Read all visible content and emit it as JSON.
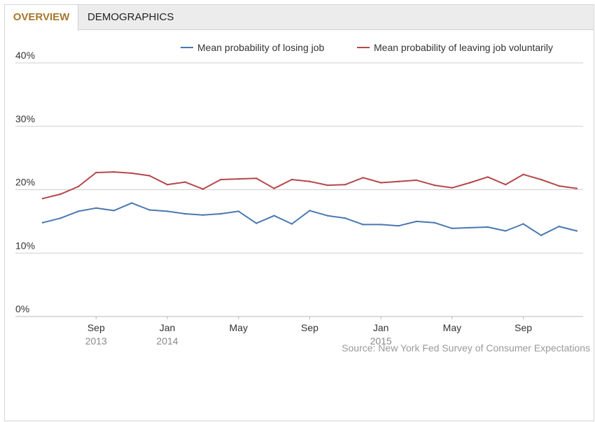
{
  "tabs": [
    {
      "label": "OVERVIEW",
      "active": true
    },
    {
      "label": "DEMOGRAPHICS",
      "active": false
    }
  ],
  "source_text": "Source: New York Fed Survey of Consumer Expectations",
  "colors": {
    "losing": "#4a78b0",
    "leaving": "#b5474a",
    "active_tab": "#a5772c"
  },
  "chart_data": {
    "type": "line",
    "title": "",
    "xlabel": "",
    "ylabel": "",
    "ylim": [
      0,
      40
    ],
    "yticks": [
      "0%",
      "10%",
      "20%",
      "30%",
      "40%"
    ],
    "ytick_values": [
      0,
      10,
      20,
      30,
      40
    ],
    "grid": true,
    "legend_position": "top-right",
    "x": [
      "2013-06",
      "2013-07",
      "2013-08",
      "2013-09",
      "2013-10",
      "2013-11",
      "2013-12",
      "2014-01",
      "2014-02",
      "2014-03",
      "2014-04",
      "2014-05",
      "2014-06",
      "2014-07",
      "2014-08",
      "2014-09",
      "2014-10",
      "2014-11",
      "2014-12",
      "2015-01",
      "2015-02",
      "2015-03",
      "2015-04",
      "2015-05",
      "2015-06",
      "2015-07",
      "2015-08",
      "2015-09",
      "2015-10",
      "2015-11",
      "2015-12"
    ],
    "xtick_labels": [
      {
        "month": "Sep",
        "year": "2013",
        "x": "2013-09"
      },
      {
        "month": "Jan",
        "year": "2014",
        "x": "2014-01"
      },
      {
        "month": "May",
        "year": "",
        "x": "2014-05"
      },
      {
        "month": "Sep",
        "year": "",
        "x": "2014-09"
      },
      {
        "month": "Jan",
        "year": "2015",
        "x": "2015-01"
      },
      {
        "month": "May",
        "year": "",
        "x": "2015-05"
      },
      {
        "month": "Sep",
        "year": "",
        "x": "2015-09"
      }
    ],
    "series": [
      {
        "name": "Mean probability of losing job",
        "color": "#4a78b0",
        "values": [
          14.8,
          15.5,
          16.6,
          17.1,
          16.7,
          17.9,
          16.8,
          16.6,
          16.2,
          16.0,
          16.2,
          16.6,
          14.7,
          15.9,
          14.6,
          16.7,
          15.9,
          15.5,
          14.5,
          14.5,
          14.3,
          15.0,
          14.8,
          13.9,
          14.0,
          14.1,
          13.5,
          14.6,
          12.8,
          14.2,
          13.5
        ]
      },
      {
        "name": "Mean probability of leaving job voluntarily",
        "color": "#b5474a",
        "values": [
          18.6,
          19.3,
          20.5,
          22.7,
          22.8,
          22.6,
          22.2,
          20.8,
          21.2,
          20.1,
          21.6,
          21.7,
          21.8,
          20.2,
          21.6,
          21.3,
          20.7,
          20.8,
          21.9,
          21.1,
          21.3,
          21.5,
          20.7,
          20.3,
          21.1,
          22.0,
          20.8,
          22.4,
          21.6,
          20.6,
          20.2
        ]
      }
    ]
  }
}
